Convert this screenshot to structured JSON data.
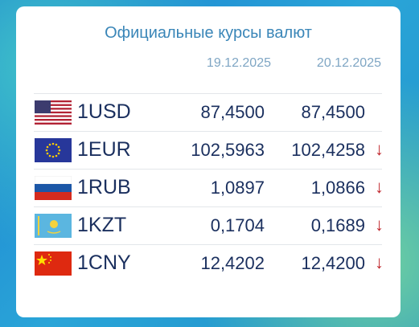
{
  "header": {
    "title": "Официальные курсы валют",
    "dates": [
      "19.12.2025",
      "20.12.2025"
    ]
  },
  "table": {
    "rows": [
      {
        "currency": "1USD",
        "rate_1": "87,4500",
        "rate_2": "87,4500"
      },
      {
        "currency": "1EUR",
        "rate_1": "102,5963",
        "rate_2": "102,4258",
        "trend": "↓"
      },
      {
        "currency": "1RUB",
        "rate_1": "1,0897",
        "rate_2": "1,0866",
        "trend": "↓"
      },
      {
        "currency": "1KZT",
        "rate_1": "0,1704",
        "rate_2": "0,1689",
        "trend": "↓"
      },
      {
        "currency": "1CNY",
        "rate_1": "12,4202",
        "rate_2": "12,4200",
        "trend": "↓"
      }
    ]
  }
}
